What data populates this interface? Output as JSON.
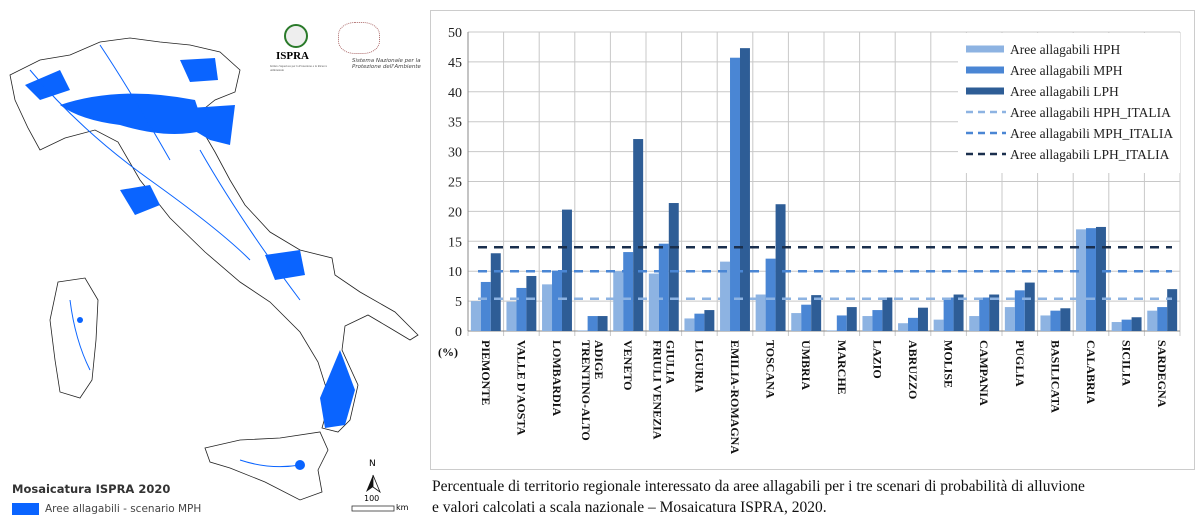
{
  "map": {
    "logo_ispra": "ISPRA",
    "logo_ispra_sub": "Istituto Superiore per la Protezione e la Ricerca Ambientale",
    "logo_snpa": "Sistema Nazionale per la Protezione dell'Ambiente",
    "title": "Mosaicatura ISPRA 2020",
    "legend_label": "Aree allagabili - scenario MPH",
    "legend_color": "#0a64ff",
    "north_label": "N",
    "scale_value": "100",
    "scale_unit": "km"
  },
  "chart_data": {
    "type": "bar",
    "ylabel": "(%)",
    "ylim": [
      0,
      50
    ],
    "yticks": [
      "0",
      "5",
      "10",
      "15",
      "20",
      "25",
      "30",
      "35",
      "40",
      "45",
      "50"
    ],
    "grid": true,
    "legend_position": "top-right",
    "categories": [
      [
        "PIEMONTE"
      ],
      [
        "VALLE D'AOSTA"
      ],
      [
        "LOMBARDIA"
      ],
      [
        "TRENTINO-ALTO",
        "ADIGE"
      ],
      [
        "VENETO"
      ],
      [
        "FRIULI VENEZIA",
        "GIULIA"
      ],
      [
        "LIGURIA"
      ],
      [
        "EMILIA-ROMAGNA"
      ],
      [
        "TOSCANA"
      ],
      [
        "UMBRIA"
      ],
      [
        "MARCHE"
      ],
      [
        "LAZIO"
      ],
      [
        "ABRUZZO"
      ],
      [
        "MOLISE"
      ],
      [
        "CAMPANIA"
      ],
      [
        "PUGLIA"
      ],
      [
        "BASILICATA"
      ],
      [
        "CALABRIA"
      ],
      [
        "SICILIA"
      ],
      [
        "SARDEGNA"
      ]
    ],
    "series": [
      {
        "name": "Aree allagabili HPH",
        "color": "#8db3e2",
        "values": [
          5.0,
          4.9,
          7.8,
          0.1,
          10.0,
          9.6,
          2.1,
          11.6,
          6.1,
          3.0,
          0.1,
          2.5,
          1.3,
          1.9,
          2.5,
          4.0,
          2.6,
          17.0,
          1.5,
          3.4
        ]
      },
      {
        "name": "Aree allagabili MPH",
        "color": "#4a86d4",
        "values": [
          8.2,
          7.2,
          10.1,
          2.5,
          13.2,
          14.6,
          2.9,
          45.7,
          12.1,
          4.4,
          2.6,
          3.5,
          2.2,
          5.6,
          5.6,
          6.8,
          3.4,
          17.2,
          1.9,
          4.0
        ]
      },
      {
        "name": "Aree allagabili LPH",
        "color": "#2e5d96",
        "values": [
          13.0,
          9.2,
          20.3,
          2.5,
          32.1,
          21.4,
          3.5,
          47.3,
          21.2,
          6.0,
          4.0,
          5.6,
          3.9,
          6.1,
          6.1,
          8.1,
          3.8,
          17.4,
          2.3,
          7.0
        ]
      }
    ],
    "reference_lines": [
      {
        "name": "Aree allagabili HPH_ITALIA",
        "value": 5.4,
        "color": "#8db3e2"
      },
      {
        "name": "Aree allagabili MPH_ITALIA",
        "value": 10.0,
        "color": "#4a86d4"
      },
      {
        "name": "Aree allagabili LPH_ITALIA",
        "value": 14.0,
        "color": "#1a2f4d"
      }
    ]
  },
  "caption": {
    "line1": "Percentuale di territorio regionale interessato da aree allagabili per i tre scenari di probabilità di alluvione",
    "line2": " e valori  calcolati a scala nazionale – Mosaicatura ISPRA, 2020."
  }
}
